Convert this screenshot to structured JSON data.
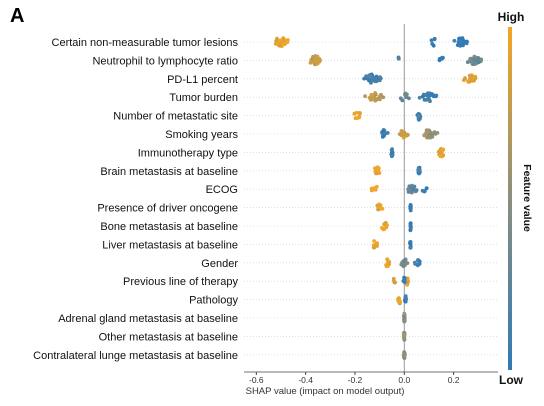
{
  "panel_label": "A",
  "chart_data": {
    "type": "scatter",
    "subtype": "shap-beeswarm",
    "xlabel": "SHAP value (impact on model output)",
    "xlim": [
      -0.65,
      0.38
    ],
    "xticks": [
      -0.6,
      -0.4,
      -0.2,
      0.0,
      0.2
    ],
    "xtick_labels": [
      "-0.6",
      "-0.4",
      "-0.2",
      "0.0",
      "0.2"
    ],
    "colorbar": {
      "label": "Feature value",
      "high_label": "High",
      "low_label": "Low",
      "high_color": "#f5a623",
      "mid_color": "#8a8f7e",
      "low_color": "#2f7ab8"
    },
    "features": [
      {
        "name": "Certain non-measurable tumor lesions",
        "clusters": [
          {
            "center": -0.5,
            "spread": 0.055,
            "n": 30,
            "color": 0.95
          },
          {
            "center": 0.23,
            "spread": 0.035,
            "n": 40,
            "color": 0.05
          },
          {
            "center": 0.12,
            "spread": 0.015,
            "n": 5,
            "color": 0.1
          }
        ]
      },
      {
        "name": "Neutrophil to lymphocyte ratio",
        "clusters": [
          {
            "center": -0.36,
            "spread": 0.04,
            "n": 30,
            "color": 0.8
          },
          {
            "center": 0.28,
            "spread": 0.04,
            "n": 35,
            "color": 0.35
          },
          {
            "center": -0.02,
            "spread": 0.01,
            "n": 3,
            "color": 0.2
          },
          {
            "center": 0.15,
            "spread": 0.02,
            "n": 6,
            "color": 0.05
          }
        ]
      },
      {
        "name": "PD-L1 percent",
        "clusters": [
          {
            "center": -0.13,
            "spread": 0.045,
            "n": 40,
            "color": 0.1
          },
          {
            "center": 0.27,
            "spread": 0.04,
            "n": 25,
            "color": 0.95
          }
        ]
      },
      {
        "name": "Tumor burden",
        "clusters": [
          {
            "center": -0.12,
            "spread": 0.045,
            "n": 25,
            "color": 0.75
          },
          {
            "center": 0.1,
            "spread": 0.045,
            "n": 30,
            "color": 0.1
          },
          {
            "center": 0.0,
            "spread": 0.03,
            "n": 8,
            "color": 0.3
          }
        ]
      },
      {
        "name": "Number of metastatic site",
        "clusters": [
          {
            "center": -0.19,
            "spread": 0.02,
            "n": 10,
            "color": 0.95
          },
          {
            "center": 0.06,
            "spread": 0.008,
            "n": 14,
            "color": 0.1
          }
        ]
      },
      {
        "name": "Smoking years",
        "clusters": [
          {
            "center": -0.08,
            "spread": 0.03,
            "n": 15,
            "color": 0.1
          },
          {
            "center": 0.1,
            "spread": 0.04,
            "n": 30,
            "color": 0.6
          },
          {
            "center": 0.0,
            "spread": 0.03,
            "n": 12,
            "color": 0.8
          }
        ]
      },
      {
        "name": "Immunotherapy type",
        "clusters": [
          {
            "center": -0.05,
            "spread": 0.005,
            "n": 12,
            "color": 0.05
          },
          {
            "center": 0.15,
            "spread": 0.02,
            "n": 14,
            "color": 0.95
          }
        ]
      },
      {
        "name": "Brain metastasis at baseline",
        "clusters": [
          {
            "center": -0.11,
            "spread": 0.02,
            "n": 14,
            "color": 0.95
          },
          {
            "center": 0.06,
            "spread": 0.005,
            "n": 14,
            "color": 0.05
          }
        ]
      },
      {
        "name": "ECOG",
        "clusters": [
          {
            "center": -0.12,
            "spread": 0.02,
            "n": 8,
            "color": 0.95
          },
          {
            "center": 0.03,
            "spread": 0.03,
            "n": 18,
            "color": 0.25
          },
          {
            "center": 0.08,
            "spread": 0.02,
            "n": 5,
            "color": 0.05
          }
        ]
      },
      {
        "name": "Presence of driver oncogene",
        "clusters": [
          {
            "center": -0.1,
            "spread": 0.02,
            "n": 12,
            "color": 0.95
          },
          {
            "center": 0.025,
            "spread": 0.003,
            "n": 12,
            "color": 0.05
          }
        ]
      },
      {
        "name": "Bone metastasis at baseline",
        "clusters": [
          {
            "center": -0.08,
            "spread": 0.02,
            "n": 10,
            "color": 0.95
          },
          {
            "center": 0.025,
            "spread": 0.003,
            "n": 12,
            "color": 0.05
          }
        ]
      },
      {
        "name": "Liver metastasis at baseline",
        "clusters": [
          {
            "center": -0.12,
            "spread": 0.02,
            "n": 8,
            "color": 0.95
          },
          {
            "center": 0.025,
            "spread": 0.003,
            "n": 12,
            "color": 0.05
          }
        ]
      },
      {
        "name": "Gender",
        "clusters": [
          {
            "center": -0.07,
            "spread": 0.015,
            "n": 10,
            "color": 0.95
          },
          {
            "center": 0.0,
            "spread": 0.02,
            "n": 20,
            "color": 0.4
          },
          {
            "center": 0.05,
            "spread": 0.015,
            "n": 8,
            "color": 0.05
          }
        ]
      },
      {
        "name": "Previous line of therapy",
        "clusters": [
          {
            "center": 0.01,
            "spread": 0.01,
            "n": 12,
            "color": 0.95
          },
          {
            "center": -0.04,
            "spread": 0.01,
            "n": 5,
            "color": 0.85
          },
          {
            "center": 0.0,
            "spread": 0.005,
            "n": 6,
            "color": 0.1
          }
        ]
      },
      {
        "name": "Pathology",
        "clusters": [
          {
            "center": -0.02,
            "spread": 0.01,
            "n": 10,
            "color": 0.9
          },
          {
            "center": 0.005,
            "spread": 0.004,
            "n": 10,
            "color": 0.05
          }
        ]
      },
      {
        "name": "Adrenal gland metastasis at baseline",
        "clusters": [
          {
            "center": 0.0,
            "spread": 0.004,
            "n": 14,
            "color": 0.5
          }
        ]
      },
      {
        "name": "Other metastasis at baseline",
        "clusters": [
          {
            "center": 0.0,
            "spread": 0.004,
            "n": 14,
            "color": 0.5
          }
        ]
      },
      {
        "name": "Contralateral lunge metastasis at baseline",
        "clusters": [
          {
            "center": 0.0,
            "spread": 0.004,
            "n": 14,
            "color": 0.5
          }
        ]
      }
    ]
  }
}
